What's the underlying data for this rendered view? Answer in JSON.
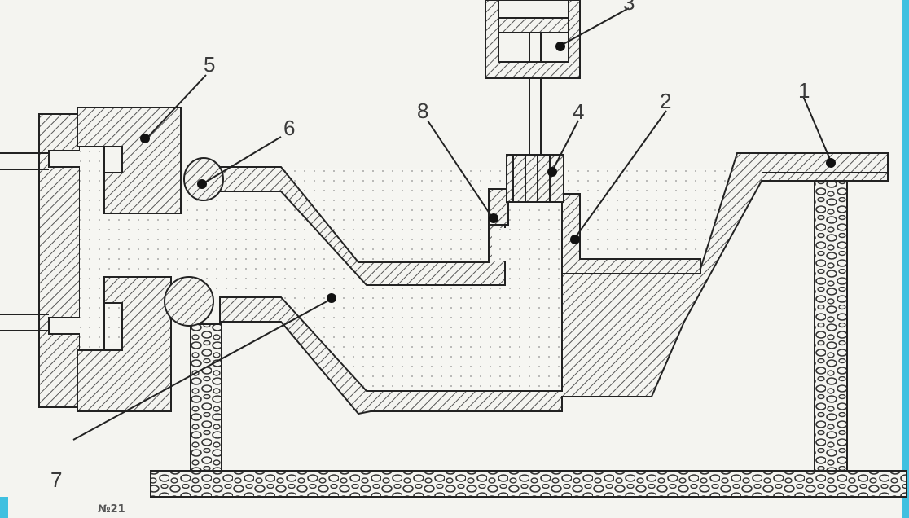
{
  "figure": {
    "labels": {
      "l1": "1",
      "l2": "2",
      "l3": "3",
      "l4": "4",
      "l5": "5",
      "l6": "6",
      "l7": "7",
      "l8": "8"
    },
    "caption": "№21",
    "colors": {
      "line": "#222222",
      "hatch": "#555555",
      "paper": "#f4f4f0",
      "accent_edge": "#3fc0e0"
    }
  }
}
